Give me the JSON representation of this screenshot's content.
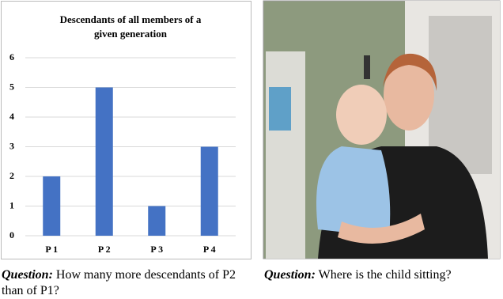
{
  "chart_data": {
    "type": "bar",
    "title": "Descendants of all members of a given generation",
    "categories": [
      "P 1",
      "P 2",
      "P 3",
      "P 4"
    ],
    "values": [
      2,
      5,
      1,
      3
    ],
    "color": "#4472c4",
    "ylim": [
      0,
      6
    ],
    "yticks": [
      0,
      1,
      2,
      3,
      4,
      5,
      6
    ],
    "grid": true
  },
  "captions": [
    {
      "label": "Question:",
      "text": "How many more descendants of  P2 than of P1?"
    },
    {
      "label": "Question:",
      "text": "Where is the child sitting?"
    }
  ]
}
